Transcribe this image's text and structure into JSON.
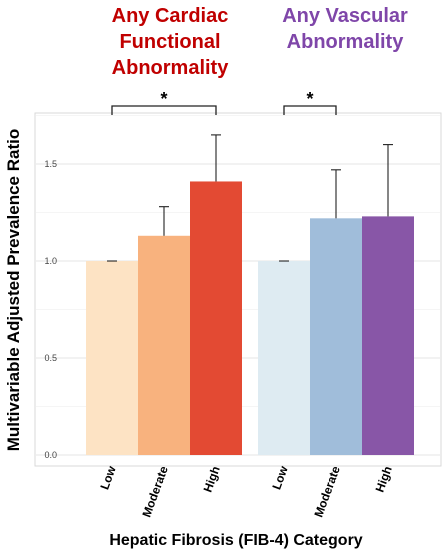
{
  "chart_data": {
    "type": "bar",
    "ylabel": "Multivariable Adjusted Prevalence Ratio",
    "xlabel": "Hepatic Fibrosis (FIB-4) Category",
    "ylim": [
      0,
      1.85
    ],
    "yticks": [
      "0.0",
      "0.5",
      "1.0",
      "1.5"
    ],
    "ytick_values": [
      0,
      0.5,
      1.0,
      1.5
    ],
    "grid": true,
    "significance_marker": "*",
    "groups": [
      {
        "name": "Any Cardiac Functional Abnormality",
        "title_lines": [
          "Any Cardiac",
          "Functional",
          "Abnormality"
        ],
        "title_color": "#C00000",
        "significance": "*",
        "categories": [
          "Low",
          "Moderate",
          "High"
        ],
        "values": [
          1.0,
          1.13,
          1.41
        ],
        "upper_ci": [
          1.0,
          1.28,
          1.65
        ],
        "colors": [
          "#FDE3C4",
          "#F8B27E",
          "#E34A33"
        ]
      },
      {
        "name": "Any Vascular Abnormality",
        "title_lines": [
          "Any Vascular",
          "Abnormality"
        ],
        "title_color": "#7F46A9",
        "significance": "*",
        "categories": [
          "Low",
          "Moderate",
          "High"
        ],
        "values": [
          1.0,
          1.22,
          1.23
        ],
        "upper_ci": [
          1.0,
          1.47,
          1.6
        ],
        "colors": [
          "#DEEBF2",
          "#A0BDDA",
          "#8856A7"
        ]
      }
    ]
  }
}
